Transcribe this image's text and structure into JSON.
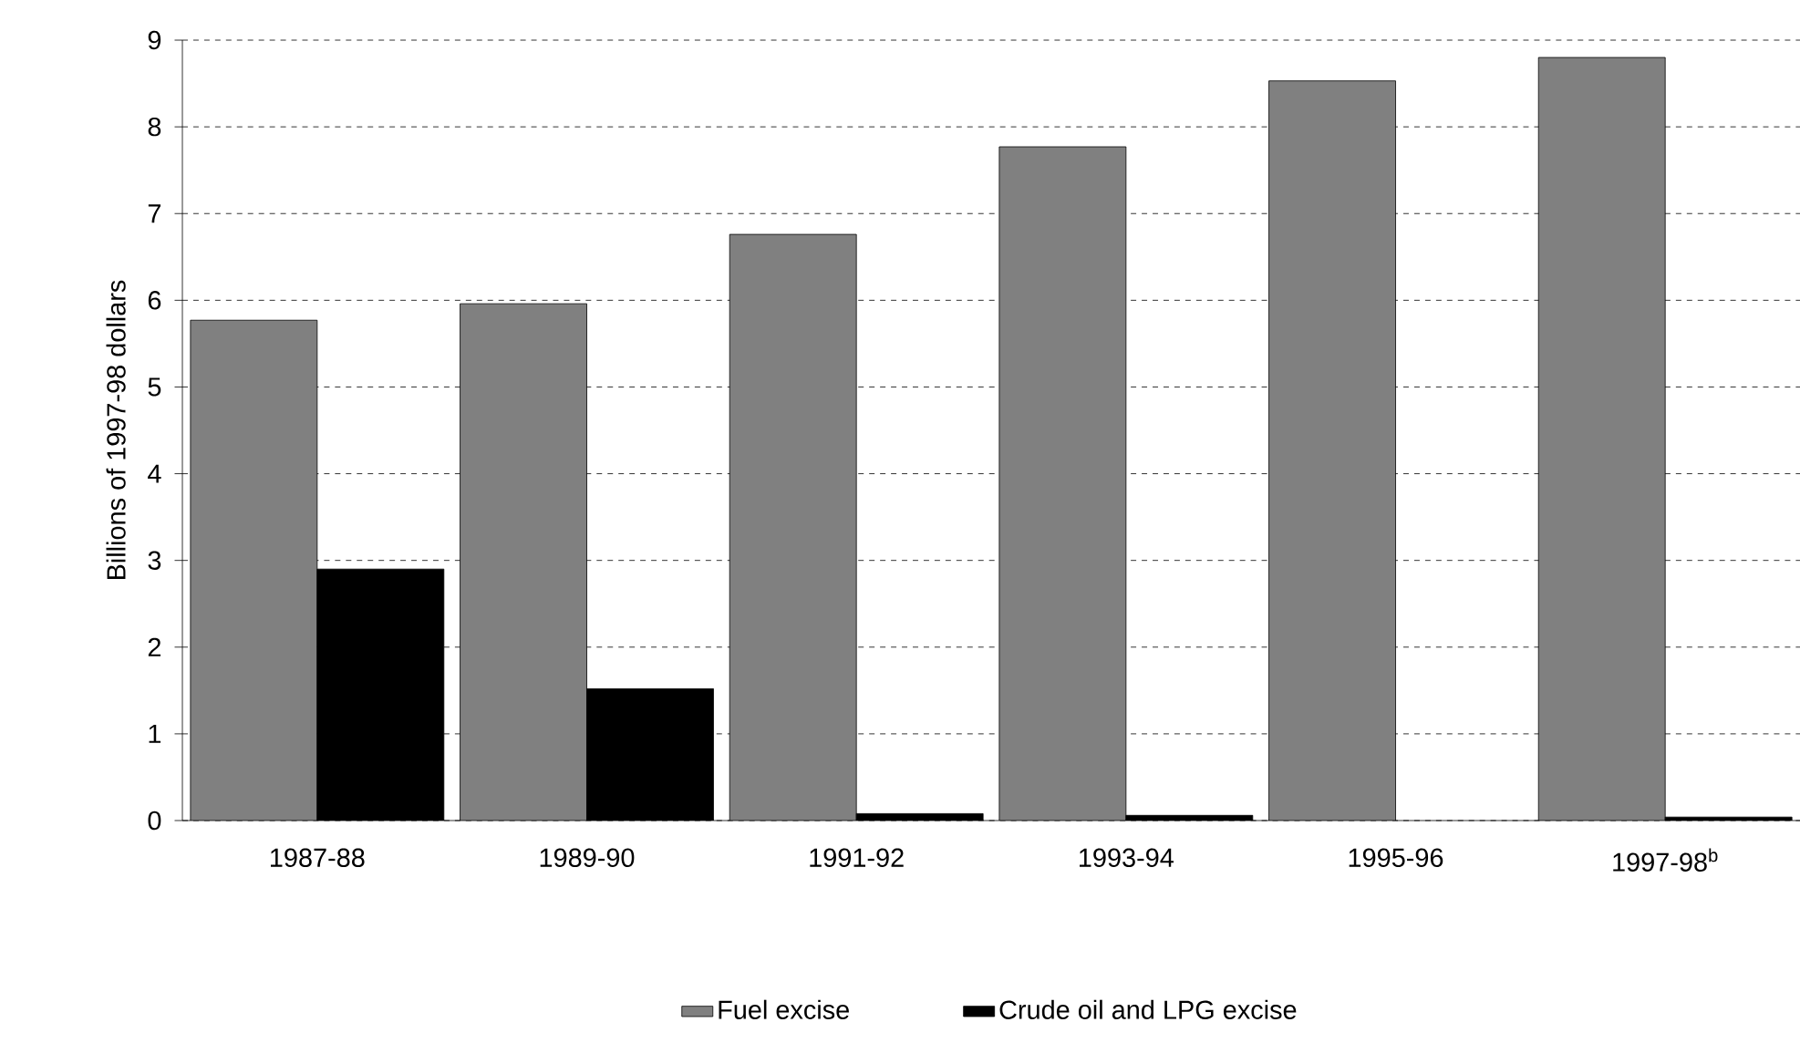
{
  "chart_data": {
    "type": "bar",
    "ylabel": "Billions of 1997-98 dollars",
    "categories": [
      "1987-88",
      "1989-90",
      "1991-92",
      "1993-94",
      "1995-96",
      "1997-98$^{b}$"
    ],
    "series": [
      {
        "name": "Fuel excise",
        "color": "#808080",
        "values": [
          5.77,
          5.96,
          6.76,
          7.77,
          8.53,
          8.8
        ]
      },
      {
        "name": "Crude oil and LPG excise",
        "color": "#000000",
        "values": [
          2.9,
          1.52,
          0.08,
          0.06,
          null,
          0.04
        ]
      }
    ],
    "ylim": [
      0,
      9
    ],
    "yticks": [
      0,
      1,
      2,
      3,
      4,
      5,
      6,
      7,
      8,
      9
    ],
    "grid": "y",
    "legend": "bottom"
  }
}
